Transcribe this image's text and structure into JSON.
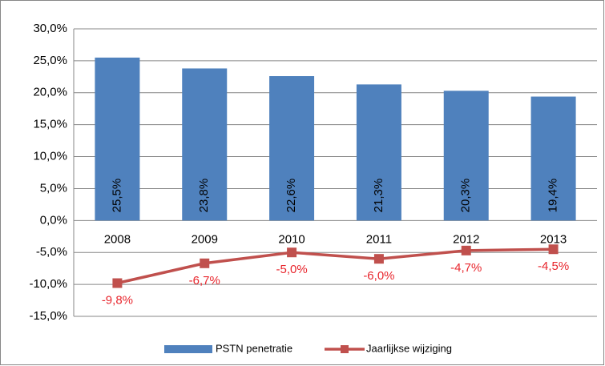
{
  "chart_data": {
    "type": "bar",
    "categories": [
      "2008",
      "2009",
      "2010",
      "2011",
      "2012",
      "2013"
    ],
    "series": [
      {
        "name": "PSTN penetratie",
        "type": "bar",
        "color": "#4f81bd",
        "values": [
          25.5,
          23.8,
          22.6,
          21.3,
          20.3,
          19.4
        ],
        "value_labels": [
          "25,5%",
          "23,8%",
          "22,6%",
          "21,3%",
          "20,3%",
          "19,4%"
        ]
      },
      {
        "name": "Jaarlijkse wijziging",
        "type": "line",
        "color": "#c0504d",
        "values": [
          -9.8,
          -6.7,
          -5.0,
          -6.0,
          -4.7,
          -4.5
        ],
        "value_labels": [
          "-9,8%",
          "-6,7%",
          "-5,0%",
          "-6,0%",
          "-4,7%",
          "-4,5%"
        ]
      }
    ],
    "ylim": [
      -15,
      30
    ],
    "yticks": [
      {
        "value": -15,
        "label": "-15,0%"
      },
      {
        "value": -10,
        "label": "-10,0%"
      },
      {
        "value": -5,
        "label": "-5,0%"
      },
      {
        "value": 0,
        "label": "0,0%"
      },
      {
        "value": 5,
        "label": "5,0%"
      },
      {
        "value": 10,
        "label": "10,0%"
      },
      {
        "value": 15,
        "label": "15,0%"
      },
      {
        "value": 20,
        "label": "20,0%"
      },
      {
        "value": 25,
        "label": "25,0%"
      },
      {
        "value": 30,
        "label": "30,0%"
      }
    ],
    "grid": true,
    "legend": "bottom"
  }
}
